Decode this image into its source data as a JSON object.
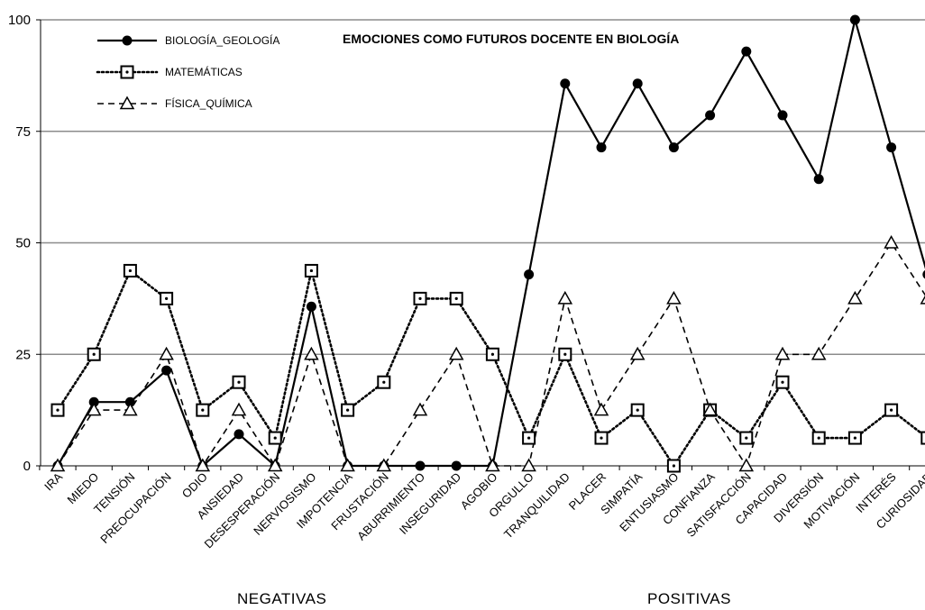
{
  "chart_data": {
    "type": "line",
    "title": "EMOCIONES COMO FUTUROS DOCENTE EN BIOLOGÍA",
    "xlabel": "",
    "ylabel": "",
    "ylim": [
      0,
      100
    ],
    "yticks": [
      "0",
      "25",
      "50",
      "75",
      "100"
    ],
    "grid": "horizontal",
    "legend_position": "top-left",
    "group_labels": [
      "NEGATIVAS",
      "POSITIVAS"
    ],
    "categories": [
      "IRA",
      "MIEDO",
      "TENSIÓN",
      "PREOCUPACIÓN",
      "ODIO",
      "ANSIEDAD",
      "DESESPERACIÓN",
      "NERVIOSISMO",
      "IMPOTENCIA",
      "FRUSTACIÓN",
      "ABURRIMIENTO",
      "INSEGURIDAD",
      "AGOBIO",
      "ORGULLO",
      "TRANQUILIDAD",
      "PLACER",
      "SIMPATÍA",
      "ENTUSIASMO",
      "CONFIANZA",
      "SATISFACCIÓN",
      "CAPACIDAD",
      "DIVERSIÓN",
      "MOTIVACIÓN",
      "INTERÉS",
      "CURIOSIDAD"
    ],
    "series": [
      {
        "name": "BIOLOGÍA_GEOLOGÍA",
        "values": [
          0,
          14.3,
          14.3,
          21.4,
          0,
          7.1,
          0,
          35.7,
          0,
          0,
          0,
          0,
          0,
          42.9,
          85.7,
          71.4,
          85.7,
          71.4,
          78.6,
          92.9,
          78.6,
          64.3,
          100,
          71.4,
          42.9
        ],
        "style": "solid",
        "marker": "filled-circle",
        "color": "#000000"
      },
      {
        "name": "MATEMÁTICAS",
        "values": [
          12.5,
          25,
          43.75,
          37.5,
          12.5,
          18.75,
          6.25,
          43.75,
          12.5,
          18.75,
          37.5,
          37.5,
          25,
          6.25,
          25,
          6.25,
          12.5,
          0,
          12.5,
          6.25,
          18.75,
          6.25,
          6.25,
          12.5,
          6.25
        ],
        "style": "dotted",
        "marker": "dotted-square",
        "color": "#000000"
      },
      {
        "name": "FÍSICA_QUÍMICA",
        "values": [
          0,
          12.5,
          12.5,
          25,
          0,
          12.5,
          0,
          25,
          0,
          0,
          12.5,
          25,
          0,
          0,
          37.5,
          12.5,
          25,
          37.5,
          12.5,
          0,
          25,
          25,
          37.5,
          50,
          37.5
        ],
        "style": "dashed",
        "marker": "open-triangle",
        "color": "#000000"
      }
    ]
  }
}
